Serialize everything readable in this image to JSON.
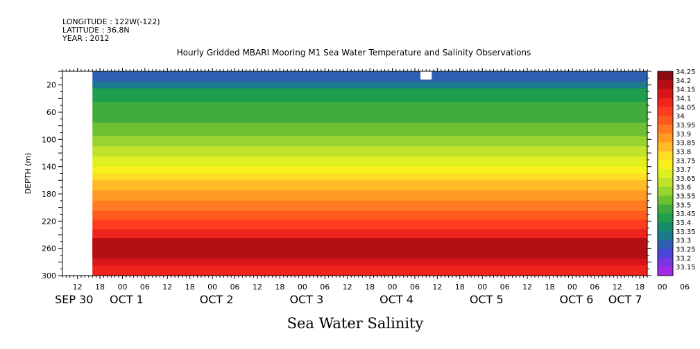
{
  "meta": {
    "longitude": "LONGITUDE : 122W(-122)",
    "latitude": "LATITUDE : 36.8N",
    "year": "YEAR : 2012"
  },
  "title": "Hourly Gridded MBARI Mooring M1 Sea Water Temperature and Salinity Observations",
  "footer_label": "Sea Water Salinity",
  "colors": {
    "background": "#ffffff",
    "missing": "#ffffff"
  },
  "chart_data": {
    "type": "heatmap",
    "title": "Hourly Gridded MBARI Mooring M1 Sea Water Temperature and Salinity Observations",
    "xlabel": "",
    "ylabel": "DEPTH (m)",
    "x_range_hours": [
      0,
      156
    ],
    "x_axis_start": "SEP 30 08:00",
    "data_start": "SEP 30 16:00",
    "ylim": [
      300,
      0
    ],
    "y_ticks": [
      20,
      60,
      100,
      140,
      180,
      220,
      260,
      300
    ],
    "hour_tick_labels": [
      "12",
      "18",
      "00",
      "06",
      "12",
      "18",
      "00",
      "06",
      "12",
      "18",
      "00",
      "06",
      "12",
      "18",
      "00",
      "06",
      "12",
      "18",
      "00",
      "06",
      "12",
      "18",
      "00",
      "06",
      "12",
      "18",
      "00",
      "06",
      "12",
      "18",
      "00",
      "06"
    ],
    "day_labels": [
      "SEP 30",
      "OCT  1",
      "OCT  2",
      "OCT  3",
      "OCT  4",
      "OCT  5",
      "OCT  6",
      "OCT  7"
    ],
    "colorbar": {
      "levels": [
        "34.25",
        "34.2",
        "34.15",
        "34.1",
        "34.05",
        "34",
        "33.95",
        "33.9",
        "33.85",
        "33.8",
        "33.75",
        "33.7",
        "33.65",
        "33.6",
        "33.55",
        "33.5",
        "33.45",
        "33.4",
        "33.35",
        "33.3",
        "33.25",
        "33.2",
        "33.15"
      ],
      "colors": [
        "#8b0b12",
        "#b40f14",
        "#d8151a",
        "#f0231d",
        "#ff3c1e",
        "#ff5a1e",
        "#ff7a20",
        "#ff9a22",
        "#ffbb26",
        "#ffdd22",
        "#f8f21a",
        "#e0ef20",
        "#c0e22a",
        "#99d330",
        "#6ec033",
        "#40ab3a",
        "#1f9e4e",
        "#178a6a",
        "#1c7a8c",
        "#2e5eb4",
        "#4a45d6",
        "#7a35e2",
        "#a52ae6"
      ]
    },
    "depth_profile": [
      {
        "depth": 0,
        "value": 33.3
      },
      {
        "depth": 15,
        "value": 33.35
      },
      {
        "depth": 25,
        "value": 33.45
      },
      {
        "depth": 45,
        "value": 33.5
      },
      {
        "depth": 75,
        "value": 33.55
      },
      {
        "depth": 95,
        "value": 33.6
      },
      {
        "depth": 110,
        "value": 33.65
      },
      {
        "depth": 125,
        "value": 33.7
      },
      {
        "depth": 140,
        "value": 33.75
      },
      {
        "depth": 150,
        "value": 33.8
      },
      {
        "depth": 160,
        "value": 33.85
      },
      {
        "depth": 175,
        "value": 33.9
      },
      {
        "depth": 190,
        "value": 33.95
      },
      {
        "depth": 205,
        "value": 34.0
      },
      {
        "depth": 218,
        "value": 34.05
      },
      {
        "depth": 232,
        "value": 34.1
      },
      {
        "depth": 245,
        "value": 34.15
      },
      {
        "depth": 270,
        "value": 34.15
      },
      {
        "depth": 285,
        "value": 34.1
      },
      {
        "depth": 300,
        "value": 34.05
      }
    ]
  }
}
